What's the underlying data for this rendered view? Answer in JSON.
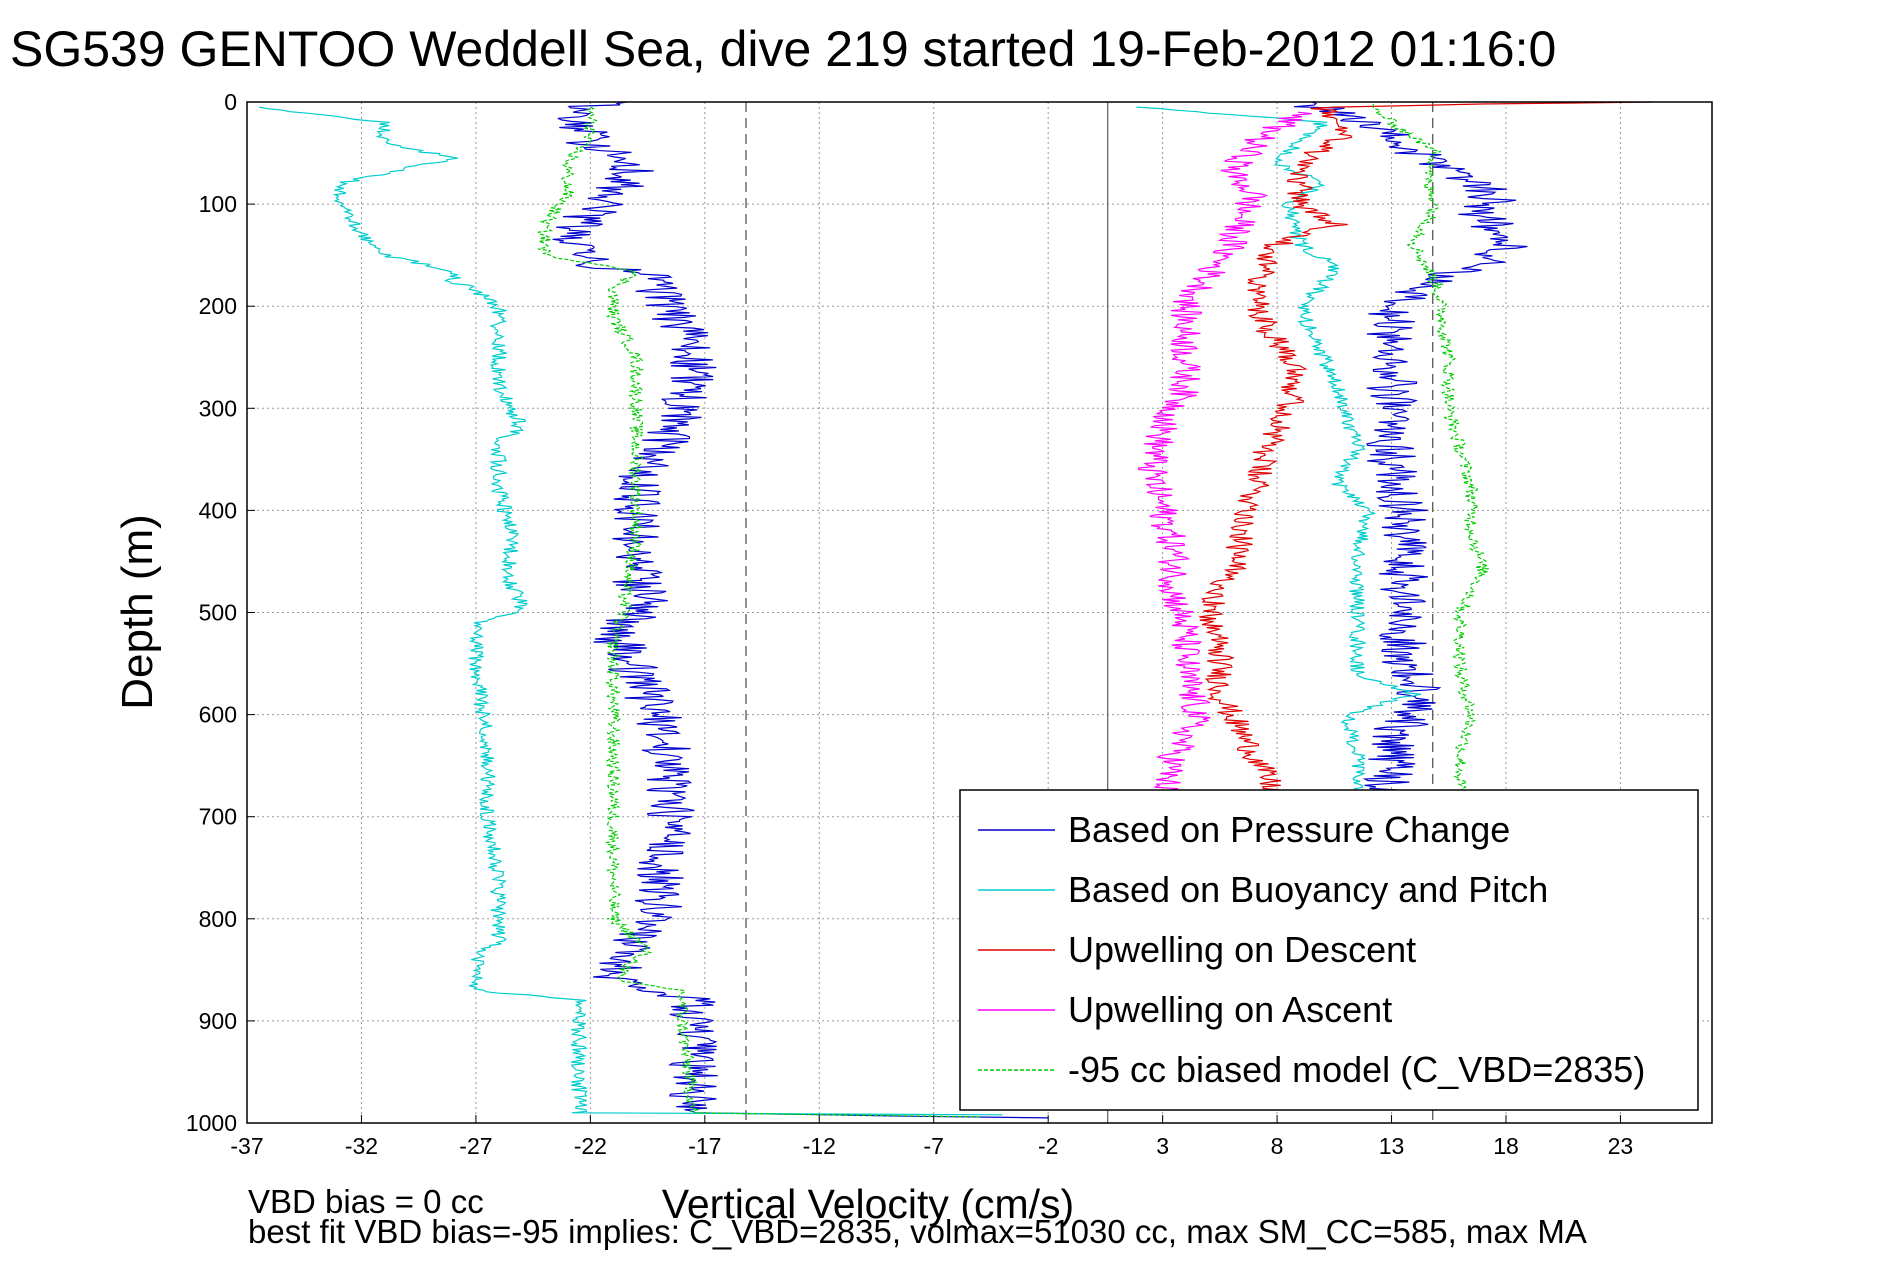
{
  "chart_data": {
    "type": "line",
    "title": "SG539 GENTOO Weddell Sea, dive 219 started 19-Feb-2012 01:16:0",
    "xlabel": "Vertical Velocity (cm/s)",
    "ylabel": "Depth (m)",
    "xlim": [
      -37,
      27
    ],
    "ylim": [
      0,
      1000
    ],
    "y_reversed": true,
    "grid": true,
    "x_ticks": [
      -37,
      -32,
      -27,
      -22,
      -17,
      -12,
      -7,
      -2,
      3,
      8,
      13,
      18,
      23
    ],
    "y_ticks": [
      0,
      100,
      200,
      300,
      400,
      500,
      600,
      700,
      800,
      900,
      1000
    ],
    "legend_position": "bottom-right",
    "reference_lines": [
      {
        "style": "dashed",
        "x": -15.2
      },
      {
        "style": "solid",
        "x": 0.6
      },
      {
        "style": "dashed",
        "x": 14.8
      }
    ],
    "footnotes": [
      "VBD bias = 0 cc",
      "best fit VBD bias=-95 implies: C_VBD=2835, volmax=51030 cc, max SM_CC=585, max MA"
    ],
    "series": [
      {
        "name": "Based on Pressure Change",
        "color": "#0000cc",
        "style": "solid",
        "noise": 1.1,
        "points": [
          [
            [
              -21,
              0
            ],
            [
              -23,
              10
            ],
            [
              -22,
              40
            ],
            [
              -20,
              60
            ],
            [
              -21,
              90
            ],
            [
              -23,
              130
            ],
            [
              -22,
              160
            ],
            [
              -19,
              170
            ],
            [
              -19,
              190
            ],
            [
              -18,
              220
            ],
            [
              -17.5,
              260
            ],
            [
              -18,
              300
            ],
            [
              -19,
              340
            ],
            [
              -20,
              380
            ],
            [
              -20,
              420
            ],
            [
              -20,
              470
            ],
            [
              -19,
              490
            ],
            [
              -20,
              500
            ],
            [
              -21,
              520
            ],
            [
              -20,
              560
            ],
            [
              -19,
              600
            ],
            [
              -18.5,
              650
            ],
            [
              -18.5,
              700
            ],
            [
              -19,
              760
            ],
            [
              -19,
              800
            ],
            [
              -20.5,
              830
            ],
            [
              -21,
              860
            ],
            [
              -17.5,
              880
            ],
            [
              -17.5,
              940
            ],
            [
              -17.5,
              990
            ],
            [
              -2,
              995
            ]
          ],
          [
            [
              9,
              0
            ],
            [
              12,
              20
            ],
            [
              14,
              50
            ],
            [
              16,
              70
            ],
            [
              17.5,
              90
            ],
            [
              17,
              110
            ],
            [
              18,
              140
            ],
            [
              17,
              160
            ],
            [
              14,
              180
            ],
            [
              13,
              200
            ],
            [
              13,
              250
            ],
            [
              13,
              300
            ],
            [
              13,
              350
            ],
            [
              13.5,
              400
            ],
            [
              13.5,
              450
            ],
            [
              13.5,
              500
            ],
            [
              13.5,
              550
            ],
            [
              14.5,
              590
            ],
            [
              13,
              620
            ],
            [
              13,
              660
            ],
            [
              12.5,
              680
            ]
          ]
        ]
      },
      {
        "name": "Based on Buoyancy and Pitch",
        "color": "#00cccc",
        "style": "solid",
        "noise": 0.35,
        "points": [
          [
            [
              -36.5,
              5
            ],
            [
              -31,
              20
            ],
            [
              -31,
              40
            ],
            [
              -28,
              55
            ],
            [
              -33,
              80
            ],
            [
              -33,
              100
            ],
            [
              -32,
              130
            ],
            [
              -31,
              150
            ],
            [
              -28,
              165
            ],
            [
              -28,
              175
            ],
            [
              -27,
              185
            ],
            [
              -26,
              200
            ],
            [
              -26,
              240
            ],
            [
              -26,
              280
            ],
            [
              -25,
              320
            ],
            [
              -26,
              330
            ],
            [
              -26,
              380
            ],
            [
              -25.5,
              420
            ],
            [
              -25.5,
              470
            ],
            [
              -25,
              490
            ],
            [
              -25,
              500
            ],
            [
              -27,
              510
            ],
            [
              -27,
              560
            ],
            [
              -26.5,
              620
            ],
            [
              -26.5,
              700
            ],
            [
              -26,
              760
            ],
            [
              -26,
              820
            ],
            [
              -27,
              840
            ],
            [
              -27,
              870
            ],
            [
              -22.5,
              880
            ],
            [
              -22.5,
              990
            ],
            [
              -4,
              992
            ]
          ],
          [
            [
              2,
              5
            ],
            [
              10,
              20
            ],
            [
              8,
              60
            ],
            [
              10,
              80
            ],
            [
              8.5,
              100
            ],
            [
              9,
              140
            ],
            [
              10.5,
              160
            ],
            [
              10,
              180
            ],
            [
              9,
              200
            ],
            [
              10,
              250
            ],
            [
              11,
              300
            ],
            [
              11.5,
              340
            ],
            [
              10.5,
              370
            ],
            [
              12,
              400
            ],
            [
              11.5,
              440
            ],
            [
              11.5,
              500
            ],
            [
              11.5,
              560
            ],
            [
              14,
              580
            ],
            [
              11,
              600
            ],
            [
              11.5,
              640
            ],
            [
              11.5,
              680
            ]
          ]
        ]
      },
      {
        "name": "Upwelling on Descent",
        "color": "#dd0000",
        "style": "solid",
        "noise": 0.6,
        "points": [
          [
            [
              24,
              0
            ],
            [
              17,
              2
            ],
            [
              10,
              5
            ],
            [
              11,
              30
            ],
            [
              9,
              60
            ],
            [
              9,
              100
            ],
            [
              10.5,
              120
            ],
            [
              8,
              140
            ],
            [
              7,
              180
            ],
            [
              7.5,
              220
            ],
            [
              9,
              260
            ],
            [
              8.5,
              300
            ],
            [
              7.5,
              340
            ],
            [
              7,
              380
            ],
            [
              6.5,
              420
            ],
            [
              6,
              460
            ],
            [
              5,
              500
            ],
            [
              5.5,
              540
            ],
            [
              5.5,
              580
            ],
            [
              6.5,
              620
            ],
            [
              7.5,
              660
            ],
            [
              8,
              680
            ]
          ]
        ]
      },
      {
        "name": "Upwelling on Ascent",
        "color": "#ff00ff",
        "style": "solid",
        "noise": 0.7,
        "points": [
          [
            [
              9,
              10
            ],
            [
              7,
              40
            ],
            [
              6,
              70
            ],
            [
              7,
              90
            ],
            [
              6.5,
              110
            ],
            [
              6,
              140
            ],
            [
              5,
              170
            ],
            [
              4,
              200
            ],
            [
              4,
              240
            ],
            [
              4,
              280
            ],
            [
              3,
              320
            ],
            [
              2.5,
              360
            ],
            [
              3,
              400
            ],
            [
              3.5,
              440
            ],
            [
              3.5,
              480
            ],
            [
              4,
              520
            ],
            [
              4,
              560
            ],
            [
              4.5,
              600
            ],
            [
              3.5,
              640
            ],
            [
              3,
              680
            ]
          ]
        ]
      },
      {
        "name": "-95 cc biased model (C_VBD=2835)",
        "color": "#00cc00",
        "style": "dashed",
        "noise": 0.3,
        "points": [
          [
            [
              -22,
              5
            ],
            [
              -22,
              30
            ],
            [
              -23,
              60
            ],
            [
              -23,
              90
            ],
            [
              -24,
              120
            ],
            [
              -24,
              150
            ],
            [
              -20,
              165
            ],
            [
              -21,
              185
            ],
            [
              -21,
              210
            ],
            [
              -20,
              250
            ],
            [
              -20,
              300
            ],
            [
              -20,
              340
            ],
            [
              -20,
              380
            ],
            [
              -20,
              430
            ],
            [
              -20.5,
              480
            ],
            [
              -20.5,
              500
            ],
            [
              -21,
              520
            ],
            [
              -21,
              560
            ],
            [
              -21,
              600
            ],
            [
              -21,
              680
            ],
            [
              -21,
              760
            ],
            [
              -21,
              800
            ],
            [
              -19.5,
              830
            ],
            [
              -21,
              860
            ],
            [
              -18,
              870
            ],
            [
              -18,
              900
            ],
            [
              -17.5,
              990
            ],
            [
              -5,
              994
            ]
          ],
          [
            [
              12,
              2
            ],
            [
              13,
              20
            ],
            [
              15,
              50
            ],
            [
              14.5,
              80
            ],
            [
              15,
              100
            ],
            [
              14,
              140
            ],
            [
              15,
              180
            ],
            [
              15.5,
              250
            ],
            [
              15.5,
              300
            ],
            [
              16,
              340
            ],
            [
              16.5,
              380
            ],
            [
              16.5,
              420
            ],
            [
              17,
              460
            ],
            [
              16,
              500
            ],
            [
              16,
              560
            ],
            [
              16.5,
              600
            ],
            [
              16,
              640
            ],
            [
              16,
              680
            ]
          ]
        ]
      }
    ]
  }
}
